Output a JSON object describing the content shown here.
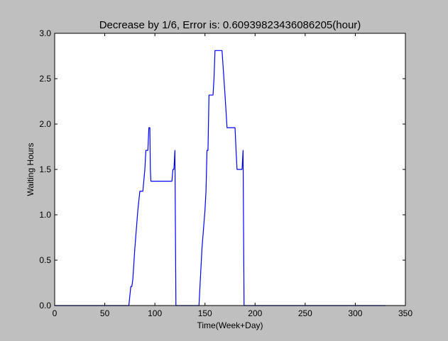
{
  "chart_data": {
    "type": "line",
    "title": "Decrease by 1/6, Error is: 0.609398234360862​05(hour)",
    "xlabel": "Time(Week+Day)",
    "ylabel": "Waiting Hours",
    "xlim": [
      0,
      350
    ],
    "ylim": [
      0.0,
      3.0
    ],
    "xticks": [
      "0",
      "50",
      "100",
      "150",
      "200",
      "250",
      "300",
      "350"
    ],
    "yticks": [
      "0.0",
      "0.5",
      "1.0",
      "1.5",
      "2.0",
      "2.5",
      "3.0"
    ],
    "grid": false,
    "background_color": "#bfbfbf",
    "plot_area_color": "#ffffff",
    "series": [
      {
        "color": "#0000ff",
        "x": [
          0,
          74,
          76,
          77,
          78,
          80,
          83,
          85,
          86,
          87,
          88,
          89,
          90,
          91,
          93,
          94,
          95,
          95.5,
          96,
          100,
          105,
          110,
          115,
          116,
          117,
          118,
          119,
          120,
          121,
          144,
          145,
          147,
          150,
          151,
          152,
          153,
          154,
          157,
          158,
          159,
          160,
          166,
          167,
          170,
          172,
          180,
          181,
          182,
          184,
          187,
          188,
          189,
          190,
          200,
          250,
          300,
          330
        ],
        "y": [
          0.0,
          0.0,
          0.21,
          0.21,
          0.29,
          0.63,
          1.05,
          1.26,
          1.26,
          1.26,
          1.26,
          1.38,
          1.5,
          1.71,
          1.71,
          1.96,
          1.96,
          1.5,
          1.37,
          1.37,
          1.37,
          1.37,
          1.37,
          1.37,
          1.37,
          1.5,
          1.5,
          1.71,
          0.0,
          0.0,
          0.21,
          0.63,
          1.05,
          1.26,
          1.71,
          1.71,
          2.32,
          2.32,
          2.32,
          2.5,
          2.81,
          2.81,
          2.81,
          2.32,
          1.96,
          1.96,
          1.71,
          1.5,
          1.5,
          1.5,
          1.71,
          0.0,
          0.0,
          0.0,
          0.0,
          0.0,
          0.0
        ]
      }
    ]
  }
}
